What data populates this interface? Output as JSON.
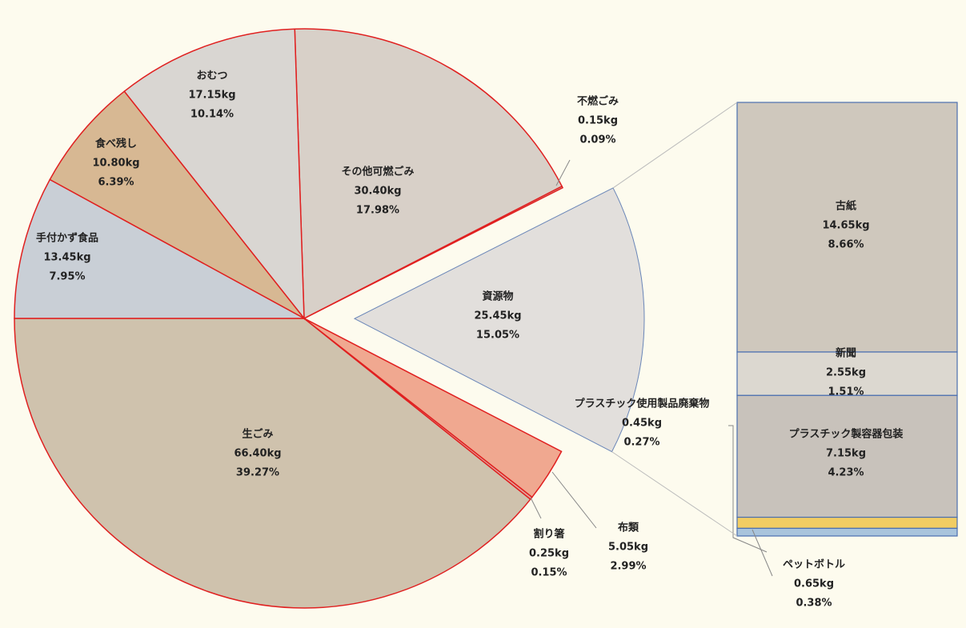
{
  "chart_data": [
    {
      "type": "pie",
      "categories": [
        "生ごみ",
        "割り箸",
        "布類",
        "資源物",
        "不燃ごみ",
        "その他可燃ごみ",
        "おむつ",
        "食べ残し",
        "手付かず食品"
      ],
      "values": [
        66.4,
        0.25,
        5.05,
        25.45,
        0.15,
        30.4,
        17.15,
        10.8,
        13.45
      ],
      "value_labels": [
        "66.40kg",
        "0.25kg",
        "5.05kg",
        "25.45kg",
        "0.15kg",
        "30.40kg",
        "17.15kg",
        "10.80kg",
        "13.45kg"
      ],
      "percents": [
        39.27,
        0.15,
        2.99,
        15.05,
        0.09,
        17.98,
        10.14,
        6.39,
        7.95
      ],
      "percent_labels": [
        "39.27%",
        "0.15%",
        "2.99%",
        "15.05%",
        "0.09%",
        "17.98%",
        "10.14%",
        "6.39%",
        "7.95%"
      ],
      "colors": [
        "#cfc2ad",
        "#e0a8a0",
        "#f0a890",
        "#e2dfdc",
        "#c9c4c0",
        "#d8d0c8",
        "#d9d6d2",
        "#d7b893",
        "#c9cfd6"
      ]
    },
    {
      "type": "bar",
      "categories": [
        "古紙",
        "新聞",
        "プラスチック製容器包装",
        "ペットボトル",
        "プラスチック使用製品廃棄物"
      ],
      "values": [
        14.65,
        2.55,
        7.15,
        0.65,
        0.45
      ],
      "value_labels": [
        "14.65kg",
        "2.55kg",
        "7.15kg",
        "0.65kg",
        "0.45kg"
      ],
      "percents": [
        8.66,
        1.51,
        4.23,
        0.38,
        0.27
      ],
      "percent_labels": [
        "8.66%",
        "1.51%",
        "4.23%",
        "0.38%",
        "0.27%"
      ],
      "colors": [
        "#cfc8bd",
        "#dcd8d0",
        "#c8c2bb",
        "#f2cd63",
        "#a9c4dc"
      ]
    }
  ]
}
